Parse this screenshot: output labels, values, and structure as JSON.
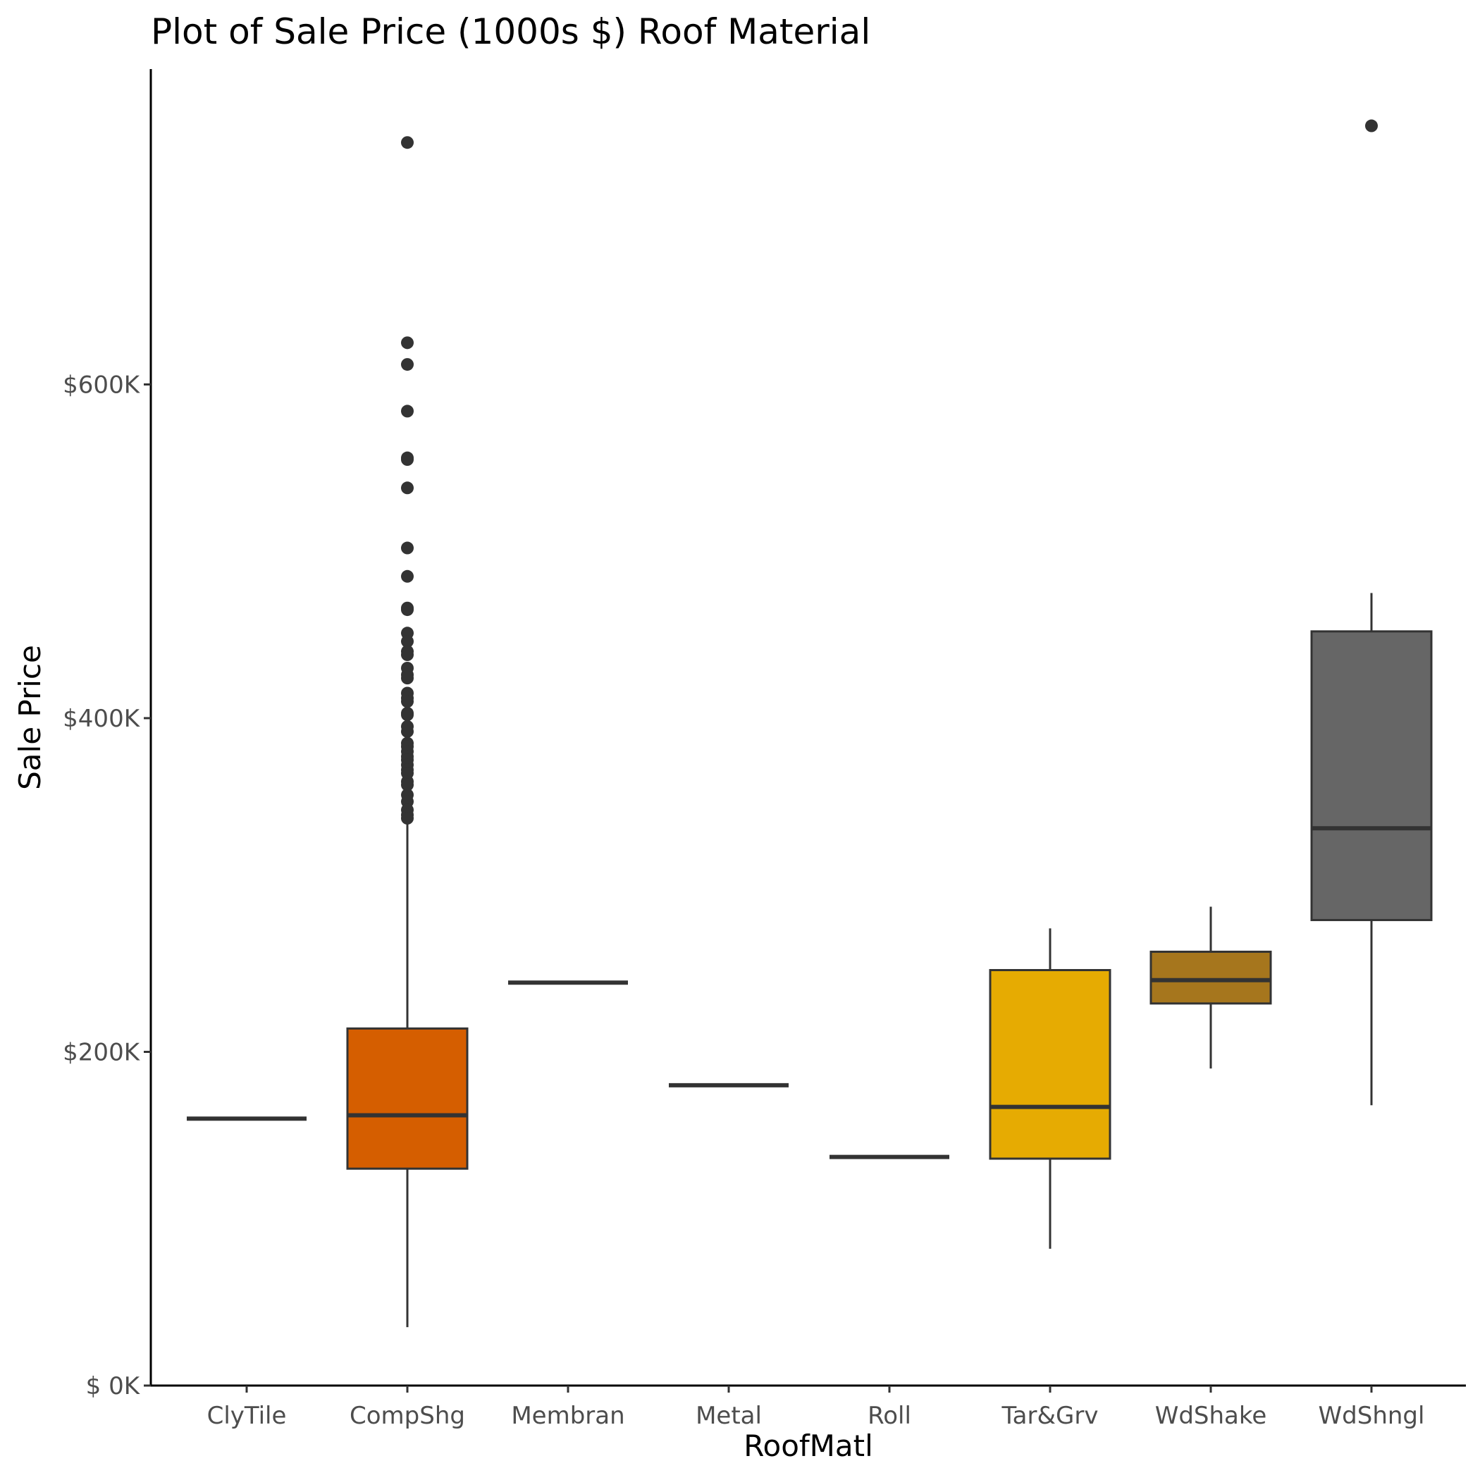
{
  "chart_data": {
    "type": "box",
    "title": "Plot of Sale Price (1000s $) Roof Material",
    "xlabel": "RoofMatl",
    "ylabel": "Sale Price",
    "categories": [
      "ClyTile",
      "CompShg",
      "Membran",
      "Metal",
      "Roll",
      "Tar&Grv",
      "WdShake",
      "WdShngl"
    ],
    "ylim": [
      0,
      770000
    ],
    "yticks": [
      {
        "value": 0,
        "label": "$  0K"
      },
      {
        "value": 200000,
        "label": "$200K"
      },
      {
        "value": 400000,
        "label": "$400K"
      },
      {
        "value": 600000,
        "label": "$600K"
      }
    ],
    "grid": false,
    "legend": "none",
    "boxes": [
      {
        "category": "ClyTile",
        "fill": "#333333",
        "whisker_low": 160000,
        "q1": 160000,
        "median": 160000,
        "q3": 160000,
        "whisker_high": 160000,
        "outliers": []
      },
      {
        "category": "CompShg",
        "fill": "#D55E00",
        "whisker_low": 35000,
        "q1": 130000,
        "median": 162000,
        "q3": 214000,
        "whisker_high": 340000,
        "outliers": [
          745000,
          625000,
          612000,
          584000,
          556000,
          555000,
          538000,
          502000,
          485000,
          466000,
          465000,
          451000,
          446000,
          440000,
          438000,
          430000,
          426000,
          424000,
          415000,
          412000,
          410000,
          403000,
          402000,
          395000,
          392000,
          385000,
          383000,
          380000,
          377000,
          375000,
          372000,
          369000,
          367000,
          362000,
          360000,
          354000,
          350000,
          345000,
          342000,
          340000
        ]
      },
      {
        "category": "Membran",
        "fill": "#333333",
        "whisker_low": 241500,
        "q1": 241500,
        "median": 241500,
        "q3": 241500,
        "whisker_high": 241500,
        "outliers": []
      },
      {
        "category": "Metal",
        "fill": "#333333",
        "whisker_low": 180000,
        "q1": 180000,
        "median": 180000,
        "q3": 180000,
        "whisker_high": 180000,
        "outliers": []
      },
      {
        "category": "Roll",
        "fill": "#333333",
        "whisker_low": 137000,
        "q1": 137000,
        "median": 137000,
        "q3": 137000,
        "whisker_high": 137000,
        "outliers": []
      },
      {
        "category": "Tar&Grv",
        "fill": "#E6AB02",
        "whisker_low": 82000,
        "q1": 136000,
        "median": 167000,
        "q3": 249000,
        "whisker_high": 274000,
        "outliers": []
      },
      {
        "category": "WdShake",
        "fill": "#A6761D",
        "whisker_low": 190000,
        "q1": 229000,
        "median": 243000,
        "q3": 260000,
        "whisker_high": 287000,
        "outliers": []
      },
      {
        "category": "WdShngl",
        "fill": "#666666",
        "whisker_low": 168000,
        "q1": 279000,
        "median": 334000,
        "q3": 452000,
        "whisker_high": 475000,
        "outliers": [
          755000
        ]
      }
    ]
  }
}
